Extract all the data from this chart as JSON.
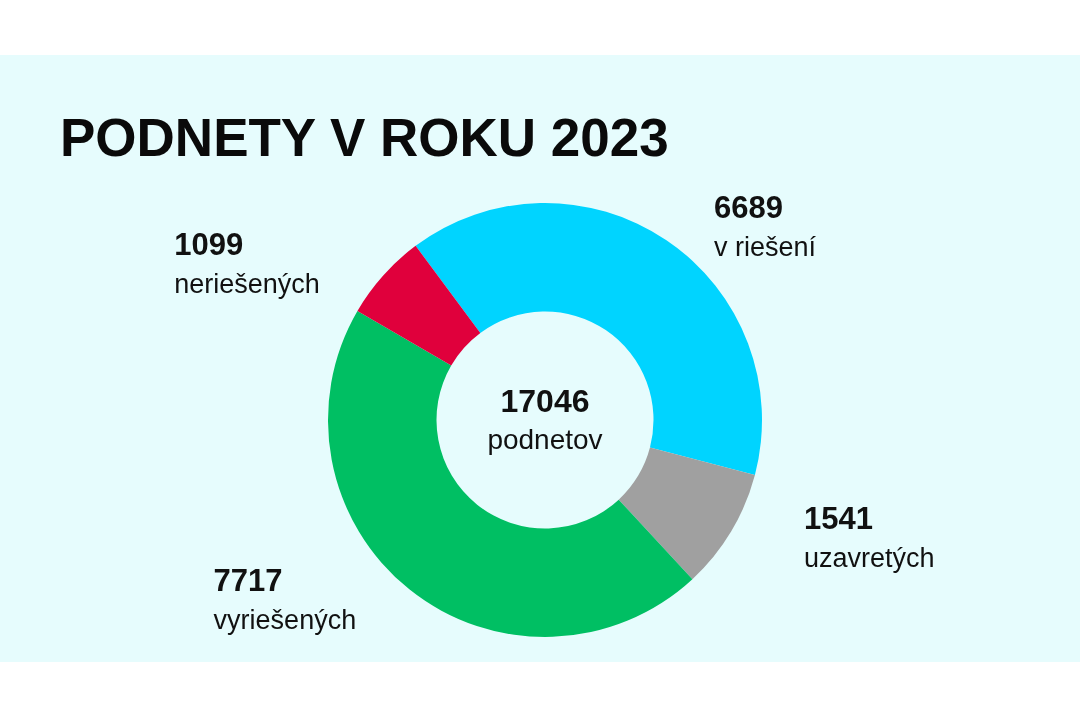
{
  "chart_data": {
    "type": "donut",
    "title": "PODNETY V ROKU 2023",
    "categories": [
      "v riešení",
      "uzavretých",
      "vyriešených",
      "neriešených"
    ],
    "values": [
      6689,
      1541,
      7717,
      1099
    ],
    "colors": [
      "#00d4ff",
      "#a0a0a0",
      "#00bf63",
      "#e0003c"
    ],
    "data_labels": true,
    "annotations": [
      "17046 podnetov"
    ]
  }
}
